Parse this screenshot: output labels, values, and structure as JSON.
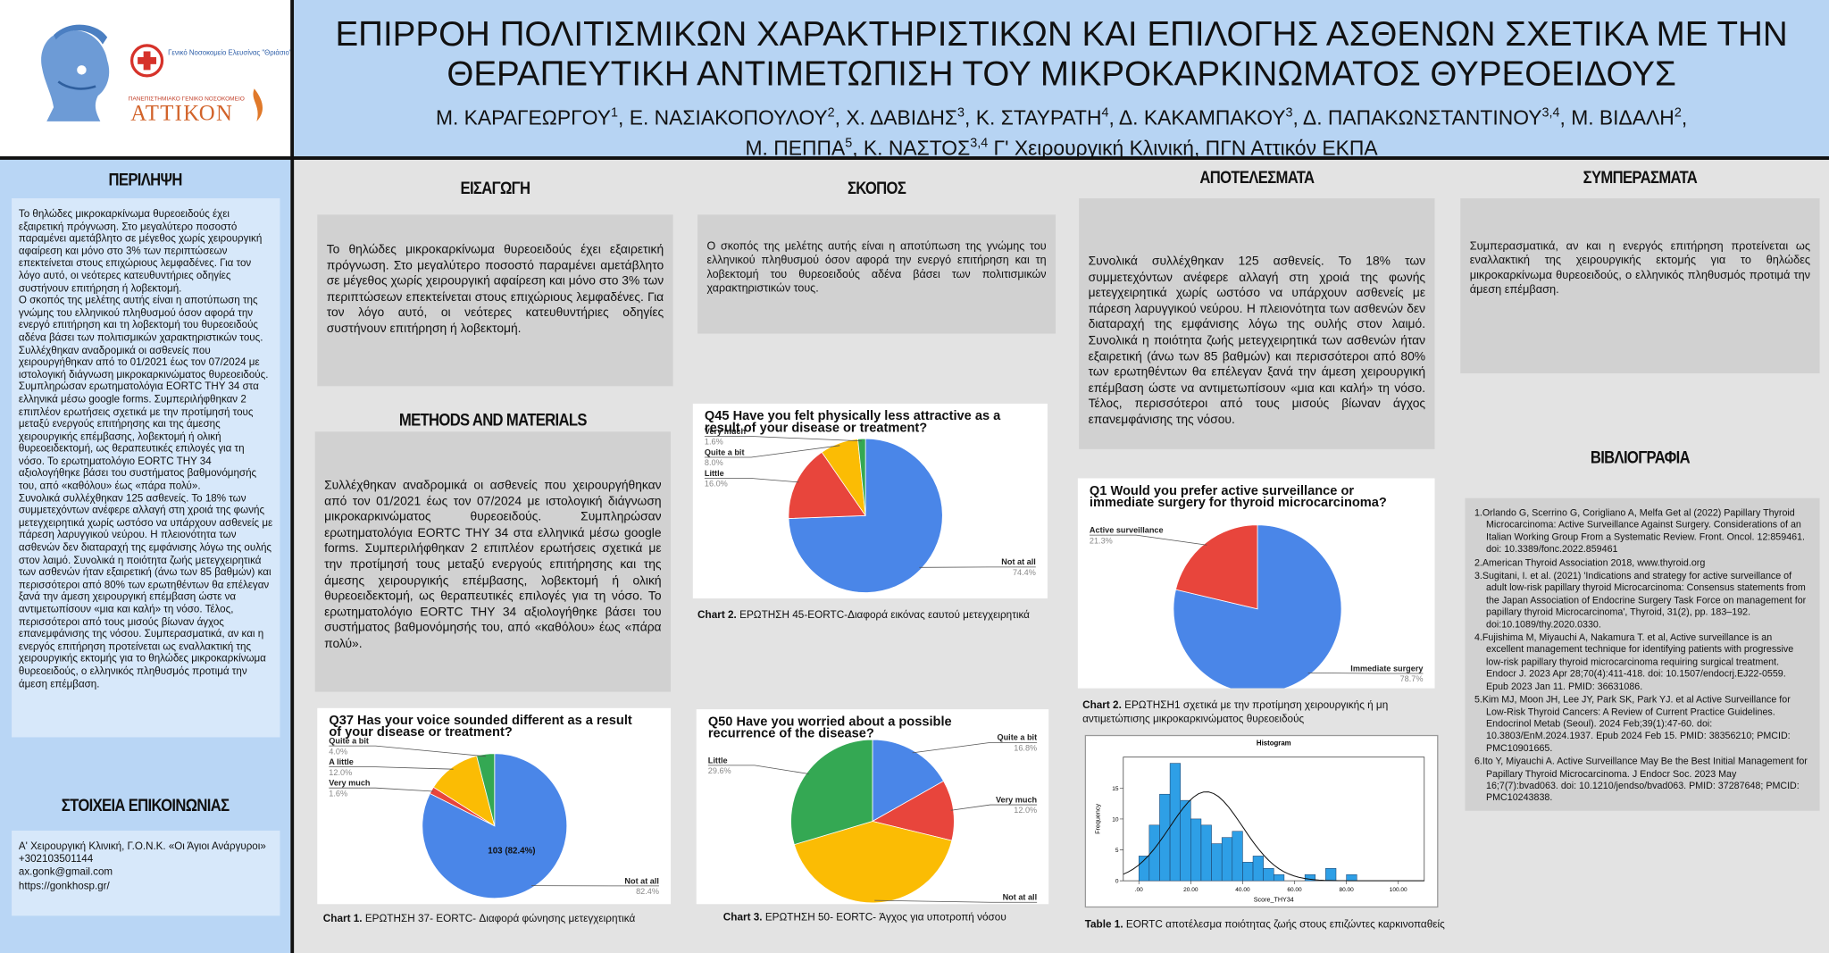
{
  "header": {
    "title": "ΕΠΙΡΡΟΗ ΠΟΛΙΤΙΣΜΙΚΩΝ ΧΑΡΑΚΤΗΡΙΣΤΙΚΩΝ ΚΑΙ ΕΠΙΛΟΓΗΣ ΑΣΘΕΝΩΝ ΣΧΕΤΙΚΑ ΜΕ ΤΗΝ ΘΕΡΑΠΕΥΤΙΚΗ ΑΝΤΙΜΕΤΩΠΙΣΗ ΤΟΥ ΜΙΚΡΟΚΑΡΚΙΝΩΜΑΤΟΣ ΘΥΡΕΟΕΙΔΟΥΣ",
    "author_lines": [
      [
        {
          "text": "Μ. ΚΑΡΑΓΕΩΡΓΟΥ"
        },
        {
          "sup": "1"
        },
        {
          "text": ", Ε. ΝΑΣΙΑΚΟΠΟΥΛΟΥ"
        },
        {
          "sup": "2"
        },
        {
          "text": ", Χ. ΔΑΒΙΔΗΣ"
        },
        {
          "sup": "3"
        },
        {
          "text": ", Κ. ΣΤΑΥΡΑΤΗ"
        },
        {
          "sup": "4"
        },
        {
          "text": ", Δ. ΚΑΚΑΜΠΑΚΟΥ"
        },
        {
          "sup": "3"
        },
        {
          "text": ", Δ. ΠΑΠΑΚΩΝΣΤΑΝΤΙΝΟΥ"
        },
        {
          "sup": "3,4"
        },
        {
          "text": ", Μ. ΒΙΔΑΛΗ"
        },
        {
          "sup": "2"
        },
        {
          "text": ","
        }
      ],
      [
        {
          "text": "Μ. ΠΕΠΠΑ"
        },
        {
          "sup": "5"
        },
        {
          "text": ", Κ. ΝΑΣΤΟΣ"
        },
        {
          "sup": "3,4"
        },
        {
          "text": " Γ' Χειρουργική Κλινική, ΠΓΝ Αττικόν ΕΚΠΑ"
        }
      ]
    ]
  },
  "logos": {
    "hospital": "Γενικό Νοσοκομείο Ελευσίνας \"Θριάσιο\"",
    "attikon_caption": "ΠΑΝΕΠΙΣΤΗΜΙΑΚΟ ΓΕΝΙΚΟ ΝΟΣΟΚΟΜΕΙΟ",
    "attikon": "ΑΤΤΙΚΟΝ"
  },
  "abstract": {
    "heading": "ΠΕΡΙΛΗΨΗ",
    "paragraphs": [
      "Το θηλώδες μικροκαρκίνωμα θυρεοειδούς έχει εξαιρετική πρόγνωση. Στο μεγαλύτερο ποσοστό παραμένει αμετάβλητο σε μέγεθος χωρίς χειρουργική αφαίρεση και μόνο στο 3% των περιπτώσεων επεκτείνεται στους επιχώριους λεμφαδένες. Για τον λόγο αυτό, οι νεότερες κατευθυντήριες οδηγίες συστήνουν επιτήρηση ή λοβεκτομή.",
      " Ο σκοπός της μελέτης αυτής είναι η αποτύπωση της γνώμης του ελληνικού πληθυσμού όσον αφορά την ενεργό επιτήρηση και τη λοβεκτομή του θυρεοειδούς αδένα βάσει των πολιτισμικών χαρακτηριστικών τους.",
      "Συλλέχθηκαν αναδρομικά οι ασθενείς που χειρουργήθηκαν από το 01/2021 έως τον 07/2024 με ιστολογική διάγνωση μικροκαρκινώματος θυρεοειδούς. Συμπληρώσαν ερωτηματολόγια EORTC THY 34 στα ελληνικά μέσω google forms. Συμπεριλήφθηκαν 2 επιπλέον ερωτήσεις σχετικά με την προτίμησή τους μεταξύ ενεργούς επιτήρησης και της άμεσης χειρουργικής επέμβασης, λοβεκτομή ή ολική θυρεοειδεκτομή, ως θεραπευτικές επιλογές για τη νόσο. Το ερωτηματολόγιο EORTC THY 34 αξιολογήθηκε βάσει του συστήματος βαθμονόμησής του, από «καθόλου» έως «πάρα πολύ».",
      "Συνολικά συλλέχθηκαν 125 ασθενείς. Το 18% των συμμετεχόντων ανέφερε αλλαγή στη χροιά της φωνής μετεγχειρητικά χωρίς ωστόσο να υπάρχουν ασθενείς με πάρεση λαρυγγικού νεύρου. Η πλειονότητα των ασθενών δεν διαταραχή της εμφάνισης λόγω της ουλής στον λαιμό. Συνολικά η ποιότητα ζωής μετεγχειρητικά των ασθενών ήταν εξαιρετική (άνω των 85 βαθμών) και περισσότεροι από 80% των ερωτηθέντων θα επέλεγαν ξανά την άμεση χειρουργική επέμβαση ώστε να αντιμετωπίσουν «μια και καλή» τη νόσο. Τέλος, περισσότεροι από τους μισούς βίωναν άγχος επανεμφάνισης της νόσου. Συμπερασματικά, αν και η ενεργός επιτήρηση προτείνεται ως εναλλακτική της χειρουργικής εκτομής για το θηλώδες μικροκαρκίνωμα θυρεοειδούς, ο ελληνικός πληθυσμός προτιμά την άμεση επέμβαση."
    ]
  },
  "contact": {
    "heading": "ΣΤΟΙΧΕΙΑ ΕΠΙΚΟΙΝΩΝΙΑΣ",
    "lines": [
      "Α' Χειρουργική Κλινική, Γ.Ο.Ν.Κ. «Οι Άγιοι Ανάργυροι»",
      "+302103501144",
      "ax.gonk@gmail.com",
      "https://gonkhosp.gr/"
    ]
  },
  "introduction": {
    "heading": "ΕΙΣΑΓΩΓΗ",
    "text": "Το θηλώδες μικροκαρκίνωμα θυρεοειδούς έχει εξαιρετική πρόγνωση. Στο μεγαλύτερο ποσοστό παραμένει αμετάβλητο σε μέγεθος χωρίς χειρουργική αφαίρεση και μόνο στο 3% των περιπτώσεων επεκτείνεται στους επιχώριους λεμφαδένες. Για τον λόγο αυτό, οι νεότερες κατευθυντήριες οδηγίες συστήνουν επιτήρηση ή λοβεκτομή."
  },
  "aim": {
    "heading": "ΣΚΟΠΟΣ",
    "text": "Ο σκοπός της μελέτης αυτής είναι η αποτύπωση της γνώμης του ελληνικού πληθυσμού όσον αφορά την ενεργό επιτήρηση και τη λοβεκτομή του θυρεοειδούς αδένα βάσει των πολιτισμικών χαρακτηριστικών τους."
  },
  "methods": {
    "heading": "METHODS AND MATERIALS",
    "text": "Συλλέχθηκαν αναδρομικά οι ασθενείς που χειρουργήθηκαν από τον 01/2021 έως τον 07/2024 με ιστολογική διάγνωση μικροκαρκινώματος θυρεοειδούς. Συμπληρώσαν ερωτηματολόγια EORTC THY 34 στα ελληνικά μέσω google forms. Συμπεριλήφθηκαν 2 επιπλέον ερωτήσεις σχετικά με την προτίμησή τους μεταξύ ενεργούς επιτήρησης και της άμεσης χειρουργικής επέμβασης, λοβεκτομή ή ολική θυρεοειδεκτομή, ως θεραπευτικές επιλογές για τη νόσο. Το ερωτηματολόγιο EORTC THY 34 αξιολογήθηκε βάσει του συστήματος βαθμονόμησής του, από «καθόλου» έως «πάρα πολύ»."
  },
  "results": {
    "heading": "ΑΠΟΤΕΛΕΣΜΑΤΑ",
    "text": "Συνολικά συλλέχθηκαν 125 ασθενείς. Το 18% των συμμετεχόντων ανέφερε αλλαγή στη χροιά της φωνής μετεγχειρητικά χωρίς ωστόσο να υπάρχουν ασθενείς με πάρεση λαρυγγικού νεύρου. Η πλειονότητα των ασθενών δεν διαταραχή της εμφάνισης λόγω της ουλής στον λαιμό. Συνολικά η ποιότητα ζωής μετεγχειρητικά των ασθενών ήταν εξαιρετική (άνω των 85 βαθμών) και περισσότεροι από 80% των ερωτηθέντων θα επέλεγαν ξανά την άμεση χειρουργική επέμβαση ώστε να αντιμετωπίσουν «μια και καλή» τη νόσο. Τέλος, περισσότεροι από τους μισούς βίωναν άγχος επανεμφάνισης της νόσου."
  },
  "conclusions": {
    "heading": "ΣΥΜΠΕΡΑΣΜΑΤΑ",
    "text": "Συμπερασματικά, αν και η ενεργός επιτήρηση προτείνεται ως εναλλακτική της χειρουργικής εκτομής για το θηλώδες μικροκαρκίνωμα θυρεοειδούς, ο ελληνικός πληθυσμός προτιμά την άμεση επέμβαση."
  },
  "references": {
    "heading": "ΒΙΒΛΙΟΓΡΑΦΙΑ",
    "items": [
      "1.Orlando G, Scerrino G, Corigliano A, Melfa Get al (2022) Papillary Thyroid Microcarcinoma: Active Surveillance Against Surgery. Considerations of an Italian Working Group From a Systematic Review. Front. Oncol. 12:859461. doi: 10.3389/fonc.2022.859461",
      "2.American Thyroid Association 2018, www.thyroid.org",
      "3.Sugitani, I. et al. (2021) 'Indications and strategy for active surveillance of adult low-risk papillary thyroid Microcarcinoma: Consensus statements from the Japan Association of Endocrine Surgery Task Force on management for papillary thyroid Microcarcinoma', Thyroid, 31(2), pp. 183–192. doi:10.1089/thy.2020.0330.",
      "4.Fujishima M, Miyauchi A, Nakamura T. et al, Active surveillance is an excellent management technique for identifying patients with progressive low-risk papillary thyroid microcarcinoma requiring surgical treatment. Endocr J. 2023 Apr 28;70(4):411-418. doi: 10.1507/endocrj.EJ22-0559. Epub 2023 Jan 11. PMID: 36631086.",
      "5.Kim MJ, Moon JH, Lee JY, Park SK, Park YJ. et al  Active Surveillance for Low-Risk Thyroid Cancers: A Review of Current Practice Guidelines. Endocrinol Metab (Seoul). 2024 Feb;39(1):47-60. doi: 10.3803/EnM.2024.1937. Epub 2024 Feb 15. PMID: 38356210; PMCID: PMC10901665.",
      "6.Ito Y, Miyauchi A. Active Surveillance May Be the Best Initial Management for Papillary Thyroid Microcarcinoma. J Endocr Soc. 2023 May 16;7(7):bvad063. doi: 10.1210/jendso/bvad063. PMID: 37287648; PMCID: PMC10243838."
    ]
  },
  "charts": [
    {
      "type": "pie",
      "title": "Q37  Has your voice sounded different as a result of your disease or treatment?",
      "categories": [
        "Not at all",
        "Very much",
        "A little",
        "Quite a bit"
      ],
      "values": [
        82.4,
        1.6,
        12.0,
        4.0
      ],
      "value_labels": [
        "82.4%",
        "1.6%",
        "12.0%",
        "4.0%"
      ],
      "colors": [
        "#4a86e8",
        "#e8453c",
        "#fbbc04",
        "#34a853"
      ],
      "annotation": "103 (82.4%)",
      "caption": {
        "label": "Chart 1.",
        "text": " ΕΡΩΤΗΣΗ 37- EORTC- Διαφορά φώνησης μετεγχειρητικά"
      }
    },
    {
      "type": "pie",
      "title": "Q45 Have you felt physically less attractive as a result of your disease or treatment?",
      "categories": [
        "Not at all",
        "Little",
        "Quite a bit",
        "Very much"
      ],
      "values": [
        74.4,
        16.0,
        8.0,
        1.6
      ],
      "value_labels": [
        "74.4%",
        "16.0%",
        "8.0%",
        "1.6%"
      ],
      "colors": [
        "#4a86e8",
        "#e8453c",
        "#fbbc04",
        "#34a853"
      ],
      "caption": {
        "label": "Chart 2.",
        "text": " ΕΡΩΤΗΣΗ 45-EORTC-Διαφορά εικόνας εαυτού μετεγχειρητικά"
      }
    },
    {
      "type": "pie",
      "title": "Q50 Have you worried about a possible recurrence of the disease?",
      "categories": [
        "Quite a bit",
        "Very much",
        "Not at all",
        "Little"
      ],
      "values": [
        16.8,
        12.0,
        41.6,
        29.6
      ],
      "value_labels": [
        "16.8%",
        "12.0%",
        "41.6%",
        "29.6%"
      ],
      "colors": [
        "#4a86e8",
        "#e8453c",
        "#fbbc04",
        "#34a853"
      ],
      "caption": {
        "label": "Chart 3.",
        "text": " ΕΡΩΤΗΣΗ 50- EORTC- Άγχος για υποτροπή νόσου"
      }
    },
    {
      "type": "pie",
      "title": "Q1 Would you prefer active surveillance or immediate surgery for thyroid microcarcinoma?",
      "categories": [
        "Immediate surgery",
        "Active surveillance"
      ],
      "values": [
        78.7,
        21.3
      ],
      "value_labels": [
        "78.7%",
        "21.3%"
      ],
      "colors": [
        "#4a86e8",
        "#e8453c"
      ],
      "caption": {
        "label": "Chart 2.",
        "text": " ΕΡΩΤΗΣΗ1 σχετικά με την προτίμηση χειρουργικής ή μη αντιμετώπισης μικροκαρκινώματος θυρεοειδούς"
      }
    },
    {
      "type": "histogram",
      "title": "Histogram",
      "xlabel": "Score_THY34",
      "ylabel": "Frequency",
      "bins": [
        0,
        4,
        8,
        12,
        16,
        20,
        24,
        28,
        32,
        36,
        40,
        44,
        48,
        52,
        56,
        60,
        64,
        68,
        72,
        76,
        80,
        84
      ],
      "values": [
        4,
        9,
        14,
        19,
        13,
        10,
        9,
        6,
        7,
        8,
        3,
        4,
        2,
        1,
        0,
        0,
        1,
        0,
        2,
        0,
        1
      ],
      "color": "#2e9fe6",
      "xlim": [
        -6,
        110
      ],
      "ylim": [
        0,
        20
      ],
      "xticks": [
        {
          "value": 0,
          "label": ".00"
        },
        {
          "value": 20,
          "label": "20.00"
        },
        {
          "value": 40,
          "label": "40.00"
        },
        {
          "value": 60,
          "label": "60.00"
        },
        {
          "value": 80,
          "label": "80.00"
        },
        {
          "value": 100,
          "label": "100.00"
        }
      ],
      "yticks": [
        0,
        5,
        10,
        15
      ],
      "caption": {
        "label": "Table 1.",
        "text": " EORTC αποτέλεσμα ποιότητας ζωής στους επιζώντες καρκινοπαθείς"
      }
    }
  ]
}
